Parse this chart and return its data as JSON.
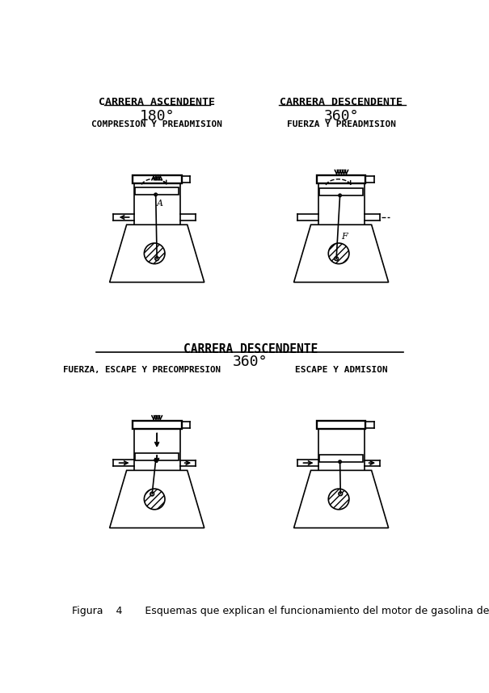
{
  "title_top_left": "CARRERA ASCENDENTE",
  "subtitle_top_left": "180°",
  "desc_top_left": "COMPRESION Y PREADMISION",
  "title_top_right": "CARRERA DESCENDENTE",
  "subtitle_top_right": "360°",
  "desc_top_right": "FUERZA Y PREADMISION",
  "title_center": "CARRERA DESCENDENTE",
  "subtitle_center": "360°",
  "desc_bottom_left": "FUERZA, ESCAPE Y PRECOMPRESION",
  "desc_bottom_right": "ESCAPE Y ADMISION",
  "caption": "Figura    4       Esquemas que explican el funcionamiento del motor de gasolina de",
  "bg_color": "#ffffff",
  "line_color": "#000000"
}
